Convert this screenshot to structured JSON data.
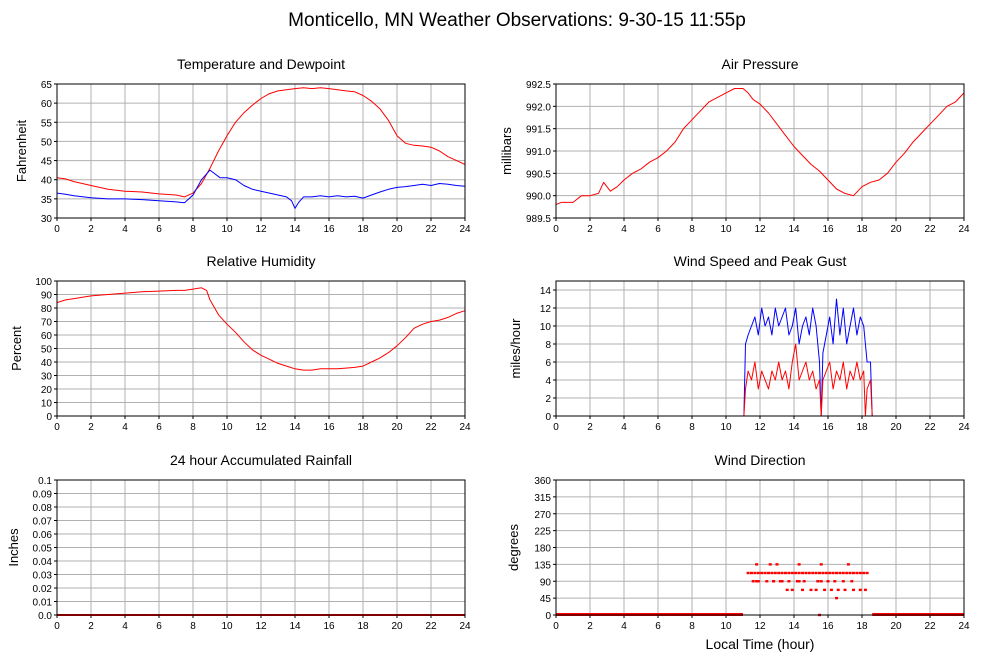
{
  "page_title": "Monticello, MN Weather Observations: 9-30-15 11:55p",
  "x_axis_title": "Local Time (hour)",
  "colors": {
    "primary": "#ff0000",
    "secondary": "#0000ff",
    "grid": "#b0b0b0",
    "frame": "#000000"
  },
  "chart_data": [
    {
      "id": "temp",
      "type": "line",
      "title": "Temperature and Dewpoint",
      "ylabel": "Fahrenheit",
      "xlim": [
        0,
        24
      ],
      "ylim": [
        30,
        65
      ],
      "xticks": [
        0,
        2,
        4,
        6,
        8,
        10,
        12,
        14,
        16,
        18,
        20,
        22,
        24
      ],
      "yticks": [
        "30",
        "35",
        "40",
        "45",
        "50",
        "55",
        "60",
        "65"
      ],
      "grid": true,
      "series": [
        {
          "color": "#ff0000",
          "x": [
            0,
            0.5,
            1,
            2,
            3,
            4,
            5,
            6,
            7,
            7.5,
            8,
            8.5,
            9,
            9.5,
            10,
            10.5,
            11,
            11.5,
            12,
            12.5,
            13,
            13.5,
            14,
            14.5,
            15,
            15.5,
            16,
            16.5,
            17,
            17.5,
            18,
            18.5,
            19,
            19.5,
            20,
            20.5,
            21,
            21.5,
            22,
            22.5,
            23,
            23.5,
            24
          ],
          "y": [
            40.5,
            40.2,
            39.5,
            38.5,
            37.5,
            37,
            36.8,
            36.3,
            36,
            35.5,
            36.5,
            39,
            43,
            47.5,
            51.5,
            55,
            57.5,
            59.5,
            61.2,
            62.5,
            63.2,
            63.5,
            63.8,
            64,
            63.8,
            64,
            63.8,
            63.5,
            63.2,
            63,
            62,
            60.5,
            58.5,
            55.5,
            51.5,
            49.5,
            49,
            48.8,
            48.5,
            47.5,
            46,
            45,
            44
          ]
        },
        {
          "color": "#0000ff",
          "x": [
            0,
            0.5,
            1,
            2,
            3,
            4,
            5,
            6,
            7,
            7.5,
            8,
            8.5,
            9,
            9.3,
            9.6,
            10,
            10.5,
            11,
            11.5,
            12,
            12.5,
            13,
            13.5,
            13.8,
            14,
            14.2,
            14.5,
            15,
            15.5,
            16,
            16.5,
            17,
            17.5,
            18,
            18.5,
            19,
            19.5,
            20,
            20.5,
            21,
            21.5,
            22,
            22.5,
            23,
            23.5,
            24
          ],
          "y": [
            36.5,
            36.2,
            35.8,
            35.3,
            35,
            35,
            34.8,
            34.5,
            34.2,
            34,
            36,
            40,
            42.5,
            41.5,
            40.5,
            40.5,
            40,
            38.5,
            37.5,
            37,
            36.5,
            36,
            35.5,
            34.5,
            32.5,
            34,
            35.5,
            35.5,
            35.8,
            35.5,
            35.8,
            35.5,
            35.7,
            35.2,
            36,
            36.8,
            37.5,
            38,
            38.2,
            38.5,
            38.8,
            38.5,
            39,
            38.8,
            38.5,
            38.3
          ]
        }
      ]
    },
    {
      "id": "pressure",
      "type": "line",
      "title": "Air Pressure",
      "ylabel": "millibars",
      "xlim": [
        0,
        24
      ],
      "ylim": [
        989.5,
        992.5
      ],
      "xticks": [
        0,
        2,
        4,
        6,
        8,
        10,
        12,
        14,
        16,
        18,
        20,
        22,
        24
      ],
      "yticks": [
        "989.5",
        "990.0",
        "990.5",
        "991.0",
        "991.5",
        "992.0",
        "992.5"
      ],
      "grid": true,
      "series": [
        {
          "color": "#ff0000",
          "x": [
            0,
            0.3,
            1,
            1.5,
            2,
            2.5,
            2.8,
            3.2,
            3.6,
            4,
            4.5,
            5,
            5.5,
            6,
            6.5,
            7,
            7.5,
            8,
            8.5,
            9,
            9.5,
            10,
            10.5,
            11,
            11.3,
            11.6,
            12,
            12.5,
            13,
            13.5,
            14,
            14.5,
            15,
            15.5,
            16,
            16.5,
            17,
            17.5,
            18,
            18.5,
            19,
            19.5,
            20,
            20.5,
            21,
            21.5,
            22,
            22.5,
            23,
            23.5,
            24
          ],
          "y": [
            989.8,
            989.85,
            989.85,
            990.0,
            990.0,
            990.05,
            990.3,
            990.1,
            990.2,
            990.35,
            990.5,
            990.6,
            990.75,
            990.85,
            991.0,
            991.2,
            991.5,
            991.7,
            991.9,
            992.1,
            992.2,
            992.3,
            992.4,
            992.4,
            992.3,
            992.15,
            992.05,
            991.85,
            991.6,
            991.35,
            991.1,
            990.9,
            990.7,
            990.55,
            990.35,
            990.15,
            990.05,
            990.0,
            990.2,
            990.3,
            990.35,
            990.5,
            990.75,
            990.95,
            991.2,
            991.4,
            991.6,
            991.8,
            992.0,
            992.1,
            992.3
          ]
        }
      ]
    },
    {
      "id": "humidity",
      "type": "line",
      "title": "Relative Humidity",
      "ylabel": "Percent",
      "xlim": [
        0,
        24
      ],
      "ylim": [
        0,
        100
      ],
      "xticks": [
        0,
        2,
        4,
        6,
        8,
        10,
        12,
        14,
        16,
        18,
        20,
        22,
        24
      ],
      "yticks": [
        "0",
        "10",
        "20",
        "30",
        "40",
        "50",
        "60",
        "70",
        "80",
        "90",
        "100"
      ],
      "grid": true,
      "series": [
        {
          "color": "#ff0000",
          "x": [
            0,
            0.5,
            1,
            2,
            3,
            4,
            5,
            6,
            7,
            7.5,
            8,
            8.5,
            8.8,
            9,
            9.5,
            10,
            10.5,
            11,
            11.5,
            12,
            12.5,
            13,
            13.5,
            14,
            14.5,
            15,
            15.5,
            16,
            16.5,
            17,
            17.5,
            18,
            18.5,
            19,
            19.5,
            20,
            20.5,
            21,
            21.5,
            22,
            22.5,
            23,
            23.5,
            24
          ],
          "y": [
            84,
            86,
            87,
            89,
            90,
            91,
            92,
            92.5,
            93,
            93,
            94,
            95,
            93,
            86,
            75,
            68,
            62,
            55,
            49,
            45,
            42,
            39,
            37,
            35,
            34,
            34,
            35,
            35,
            35,
            35.5,
            36,
            37,
            40,
            43,
            47,
            52,
            58,
            65,
            68,
            70,
            71,
            73,
            76,
            78
          ]
        }
      ]
    },
    {
      "id": "wind",
      "type": "line",
      "title": "Wind Speed and Peak Gust",
      "ylabel": "miles/hour",
      "xlim": [
        0,
        24
      ],
      "ylim": [
        0,
        15
      ],
      "xticks": [
        0,
        2,
        4,
        6,
        8,
        10,
        12,
        14,
        16,
        18,
        20,
        22,
        24
      ],
      "yticks": [
        "0",
        "2",
        "4",
        "6",
        "8",
        "10",
        "12",
        "14"
      ],
      "grid": true,
      "series": [
        {
          "color": "#0000ff",
          "x": [
            0,
            11.05,
            11.15,
            11.3,
            11.5,
            11.7,
            11.9,
            12.1,
            12.3,
            12.5,
            12.7,
            12.9,
            13.1,
            13.3,
            13.5,
            13.7,
            13.9,
            14.1,
            14.3,
            14.5,
            14.7,
            14.9,
            15.1,
            15.3,
            15.5,
            15.6,
            15.7,
            15.9,
            16.1,
            16.3,
            16.5,
            16.7,
            16.9,
            17.1,
            17.3,
            17.5,
            17.7,
            17.9,
            18.1,
            18.3,
            18.5,
            18.6,
            18.7,
            24
          ],
          "y": [
            0,
            0,
            8,
            9,
            10,
            11,
            9,
            12,
            10,
            11,
            9,
            12,
            10,
            11,
            12,
            9,
            10,
            12,
            8,
            10,
            11,
            9,
            12,
            10,
            6,
            0,
            7,
            9,
            11,
            8,
            13,
            9,
            12,
            8,
            10,
            12,
            9,
            11,
            10,
            6,
            6,
            0,
            0,
            0
          ]
        },
        {
          "color": "#ff0000",
          "x": [
            0,
            11.05,
            11.15,
            11.3,
            11.5,
            11.7,
            11.9,
            12.1,
            12.3,
            12.5,
            12.7,
            12.9,
            13.1,
            13.3,
            13.5,
            13.7,
            13.9,
            14.1,
            14.3,
            14.5,
            14.7,
            14.9,
            15.1,
            15.3,
            15.5,
            15.6,
            15.7,
            15.9,
            16.1,
            16.3,
            16.5,
            16.7,
            16.9,
            17.1,
            17.3,
            17.5,
            17.7,
            17.9,
            18.1,
            18.2,
            18.3,
            18.5,
            18.6,
            18.7,
            24
          ],
          "y": [
            0,
            0,
            3,
            5,
            4,
            6,
            3,
            5,
            4,
            3,
            5,
            4,
            6,
            4,
            5,
            3,
            6,
            8,
            4,
            5,
            6,
            4,
            5,
            3,
            4,
            0,
            4,
            5,
            6,
            3,
            5,
            4,
            6,
            3,
            5,
            4,
            6,
            4,
            5,
            0,
            3,
            4,
            0,
            0,
            0
          ]
        }
      ]
    },
    {
      "id": "rain",
      "type": "line",
      "title": "24 hour Accumulated Rainfall",
      "ylabel": "Inches",
      "xlim": [
        0,
        24
      ],
      "ylim": [
        0,
        0.1
      ],
      "xticks": [
        0,
        2,
        4,
        6,
        8,
        10,
        12,
        14,
        16,
        18,
        20,
        22,
        24
      ],
      "yticks": [
        "0.0",
        "0.01",
        "0.02",
        "0.03",
        "0.04",
        "0.05",
        "0.06",
        "0.07",
        "0.08",
        "0.09",
        "0.1"
      ],
      "grid": true,
      "series": [
        {
          "color": "#ff0000",
          "x": [
            0,
            24
          ],
          "y": [
            0,
            0
          ]
        }
      ]
    },
    {
      "id": "direction",
      "type": "scatter",
      "title": "Wind Direction",
      "ylabel": "degrees",
      "xlim": [
        0,
        24
      ],
      "ylim": [
        0,
        360
      ],
      "xticks": [
        0,
        2,
        4,
        6,
        8,
        10,
        12,
        14,
        16,
        18,
        20,
        22,
        24
      ],
      "yticks": [
        "0",
        "45",
        "90",
        "135",
        "180",
        "225",
        "270",
        "315",
        "360"
      ],
      "grid": true,
      "series": [
        {
          "color": "#ff0000",
          "x": [
            11.3,
            11.5,
            11.7,
            11.9,
            12.1,
            12.3,
            12.5,
            12.7,
            12.9,
            13.1,
            13.3,
            13.5,
            13.7,
            13.9,
            14.1,
            14.3,
            14.5,
            14.7,
            14.9,
            15.1,
            15.3,
            15.5,
            15.7,
            15.9,
            16.1,
            16.3,
            16.5,
            16.7,
            16.9,
            17.1,
            17.3,
            17.5,
            17.7,
            17.9,
            18.1,
            18.3,
            11.6,
            11.9,
            12.4,
            12.8,
            13.2,
            13.7,
            14.2,
            14.6,
            15.4,
            16.0,
            16.4,
            16.9,
            17.4,
            11.8,
            12.6,
            13.0,
            14.3,
            15.6,
            17.2,
            13.6,
            13.9,
            14.5,
            15.0,
            15.3,
            15.8,
            16.2,
            16.6,
            17.0,
            17.5,
            17.9,
            18.2,
            11.8,
            12.8,
            13.3,
            14.3,
            15.6,
            15.5,
            16.5
          ],
          "y": [
            112,
            112,
            112,
            112,
            112,
            112,
            112,
            112,
            112,
            112,
            112,
            112,
            112,
            112,
            112,
            112,
            112,
            112,
            112,
            112,
            112,
            112,
            112,
            112,
            112,
            112,
            112,
            112,
            112,
            112,
            112,
            112,
            112,
            112,
            112,
            112,
            90,
            90,
            90,
            90,
            90,
            90,
            90,
            90,
            90,
            90,
            90,
            90,
            90,
            135,
            135,
            135,
            135,
            135,
            135,
            67,
            67,
            67,
            67,
            67,
            67,
            67,
            67,
            67,
            67,
            67,
            67,
            90,
            90,
            90,
            90,
            90,
            0,
            45
          ]
        },
        {
          "color": "#ff0000",
          "kind": "baseline",
          "x": [
            0,
            11.0,
            18.6,
            24
          ],
          "y": [
            0,
            0,
            0,
            0
          ]
        }
      ]
    }
  ]
}
